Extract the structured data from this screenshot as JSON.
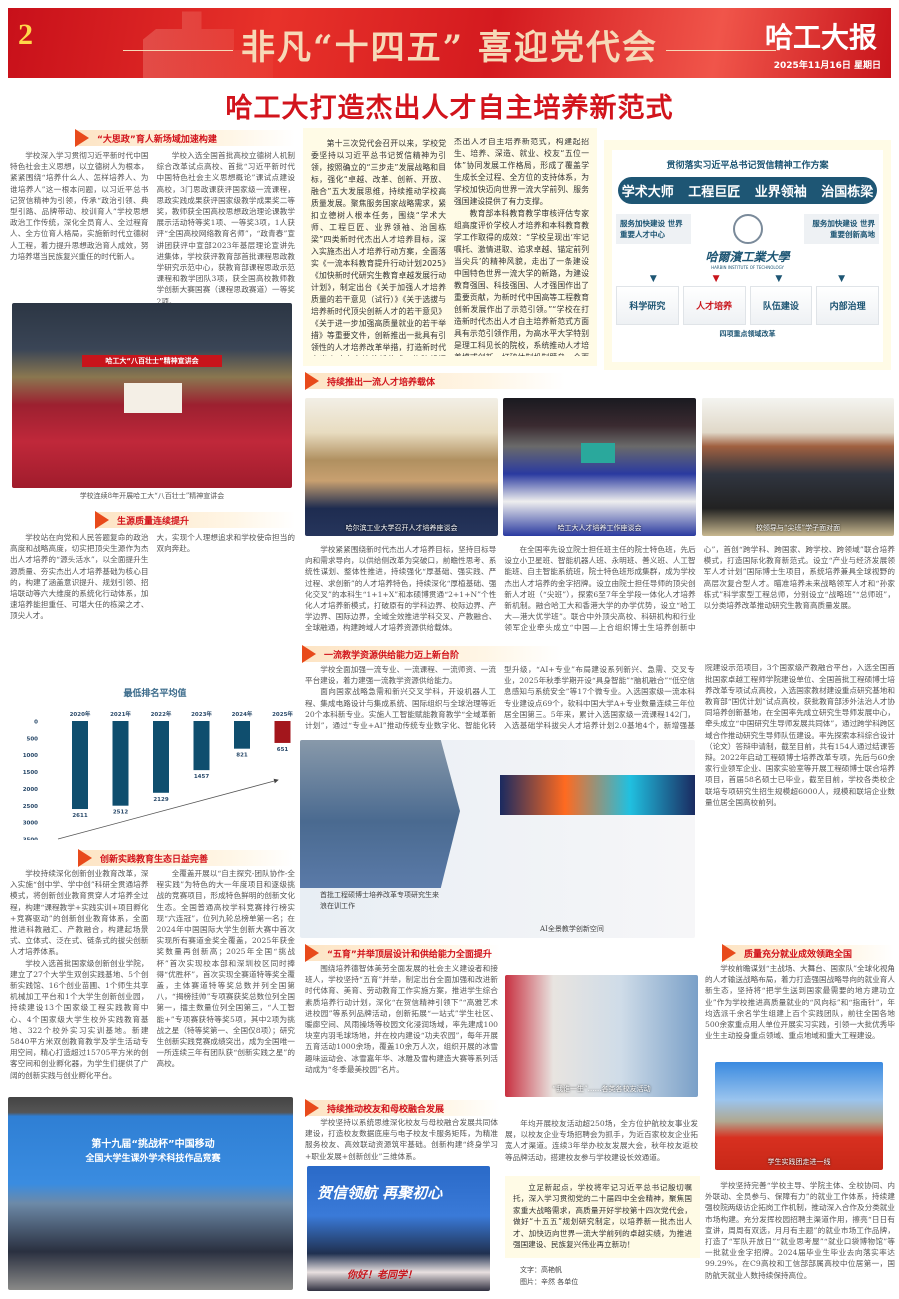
{
  "header": {
    "page_number": "2",
    "slogan": "非凡“十四五” 喜迎党代会",
    "paper_name": "哈工大报",
    "date": "2025年11月16日 星期日"
  },
  "headline": "哈工大打造杰出人才自主培养新范式",
  "colors": {
    "brand_red": "#d2141c",
    "accent_orange": "#e84a1b",
    "chart_bar": "#0f4e6e",
    "chart_highlight": "#a3161c",
    "infographic_blue": "#1e5674",
    "box_yellow": "#fffbe6"
  },
  "sections": {
    "s1": {
      "title": "“大思政”育人新场域加速构建",
      "p1": "学校深入学习贯彻习近平新时代中国特色社会主义思想，以立德树人为根本，紧紧围绕“培养什么人、怎样培养人、为谁培养人”这一根本问题，以习近平总书记贺信精神为引领，传承“政治引领、典型引路、品牌带动、校训育人”学校思想政治工作传统，深化全员育人、全过程育人、全方位育人格局，实施新时代立德树人工程，着力提升思想政治育人成效，努力培养堪当民族复兴重任的时代新人。",
      "p2": "学校入选全国首批高校立德树人机制综合改革试点高校、首批“习近平新时代中国特色社会主义思想概论”课试点建设高校，3门思政课获评国家级一流课程，思政实践成果获评国家级教学成果奖二等奖，教师获全国高校思想政治理论课教学展示活动特等奖1项、一等奖3项，1人获评“全国高校网络教育名师”，“政青春”宣讲团获评中宣部2023年基层理论宣讲先进集体，学校获评教育部首批课程思政教学研究示范中心，获教育部课程思政示范课程和教学团队3项，获全国高校教师教学创新大赛国赛（课程思政赛道）一等奖2项。",
      "photo_banner": "哈工大“八百壮士”精神宣讲会",
      "photo_caption": "学校连续8年开展哈工大“八百壮士”精神宣讲会"
    },
    "s2": {
      "title": "生源质量连续提升",
      "p1": "学校站在向党和人民答题复命的政治高度和战略高度，切实把顶尖生源作为杰出人才培养的“源头活水”，以全面提升生源质量、夯实杰出人才培养基础为核心目的，构建了涵盖意识提升、规划引领、招培联动等六大维度的系统化行动体系，加速培养能担重任、可堪大任的栋梁之才、顶尖人才。",
      "p2": "校领导带队深入走访重点中学，招生部门强化与各部门协同联动，各地招生组扩大名额、校友等力量，本科生生源质量连续五年提升，录取最低排名平均值由2020年的2611名跃升至2025年的651名，达到改革开放以来最好成绩。创新实施“博士研究生招生优秀生源快响行动”，实现从“被动选才”向“主动聚才”转变，硕士研究生推免生、博士研究生优秀生源率均提高，研究生生源质量较“十四五”初翻一番。一大批优秀学子主动选择报考哈工大，实现个人理想追求和学校使命担当的双向奔赴。"
    },
    "s3": {
      "title": "创新实践教育生态日益完善",
      "p1": "学校持续深化创新创业教育改革，深入实施“创中学、学中创”科研全贯通培养模式，将创新创业教育贯穿人才培养全过程，构建“课程教学+实践实训+项目孵化+竞赛驱动”的创新创业教育体系，全面推进科教融汇、产教融合，构建起场景式、立体式、泛在式、链条式的拔尖创新人才培养体系。",
      "p2": "学校入选首批国家级创新创业学院，建立了27个大学生双创实践基地、5个创新实践馆、16个创业苗圃、1个师生共享机械加工平台和1个大学生创新创业园，持续建设13个国家级工程实践教育中心、4个国家级大学生校外实践教育基地、322个校外实习实训基地。新建5840平方米双创教育教学及学生活动专用空间，精心打造超过15705平方米的创客空间和创业孵化器，为学生们提供了广阔的创新实践与创业孵化平台。",
      "p3": "全覆盖开展以“自主探究-团队协作-全程实践”为特色的大一年度项目和逐级挑战的竞赛项目，形成特色鲜明的创新文化生态。全国普通高校学科竞赛排行榜实现“六连冠”，位列九轮总榜单第一名；在2024年中国国际大学生创新大赛中首次实现所有赛道金奖全覆盖，2025年获金奖数量再创新高；2025年全国“挑战杯”首次实现校本部和深圳校区同时捧得“优胜杯”，首次实现全赛道特等奖全覆盖，主体赛道特等奖总数并列全国第八，“揭榜挂帅”专项赛获奖总数位列全国第一，擂主数量位列全国第三，“人工智能+”专项赛获特等奖5项，其中2项为挑战之星（特等奖第一、全国仅8项）；研究生创新实践竞赛成绩突出，成为全国唯一一所连续三年有团队获“创新实践之星”的高校。",
      "photo_banner_1": "第十九届“挑战杯”中国移动",
      "photo_banner_2": "全国大学生课外学术科技作品竞赛"
    },
    "intro": {
      "p1": "第十三次党代会召开以来，学校党委坚持以习近平总书记贺信精神为引领，按照确立的“三步走”发展战略和目标，强化“卓越、改革、创新、开放、融合”五大发展思维，持续推动学校高质量发展。聚焦服务国家战略需求，紧扣立德树人根本任务，围绕“学术大师、工程巨匠、业界领袖、治国栋梁”四类新时代杰出人才培养目标，深入实施杰出人才培养行动方案，全面落实《一流本科教育提升行动计划2025》《加快新时代研究生教育卓越发展行动计划》，制定出台《关于加强人才培养质量的若干意见（试行）》《关于选拔与培养新时代顶尖创新人才的若干意见》《关于进一步加强高质量就业的若干举措》等重要文件，创新推出一批具有引领性的人才培养改革举措，打造新时代杰出人才自主培养新范式，构建起招生、培养、深造、就业、校友“五位一体”协同发展工作格局，形成了覆盖学生成长全过程、全方位的支持体系，为学校加快迈向世界一流大学前列、服务强国建设提供了有力支撑。",
      "p2": "教育部本科教育教学审核评估专家组高度评价学校人才培养和本科教育教学工作取得的成效：“学校呈现出‘牢记嘱托、激情进取、追求卓越、锚定前列当尖兵’的精神风貌，走出了一条建设中国特色世界一流大学的新路，为建设教育强国、科技强国、人才强国作出了重要贡献，为新时代中国高等工程教育创新发展作出了示范引领。”“学校在打造新时代杰出人才自主培养新范式方面具有示范引领作用，为高水平大学特别是理工科见长的院校，系统推动人才培养模式创新、打破体制机制壁垒、全面提升育人质量，提供了极具借鉴意义的完整方案与实施路径。”"
    },
    "infographic": {
      "title": "贯彻落实习近平总书记贺信精神工作方案",
      "goals": "学术大师 工程巨匠 业界领袖 治国栋梁",
      "left": "服务加快建设 世界重要人才中心",
      "right": "服务加快建设 世界重要创新高地",
      "university": "哈爾濱工業大學",
      "university_en": "HARBIN INSTITUTE OF TECHNOLOGY",
      "areas": [
        "科学研究",
        "人才培养",
        "队伍建设",
        "内部治理"
      ],
      "highlight_area": "人才培养",
      "footer": "四项重点领域改革"
    },
    "s4": {
      "title": "持续推出一流人才培养载体",
      "photo_captions": [
        "哈尔滨工业大学召开人才培养座谈会",
        "哈工大人才培养工作座谈会",
        "校领导与“尖班”学子面对面"
      ],
      "p1": "学校紧紧围绕新时代杰出人才培养目标，坚持目标导向和需求导向，以供给侧改革为突破口，前瞻性思考、系统性谋划、整体性推进，持续强化“厚基础、强实践、严过程、求创新”的人才培养特色，持续深化“厚植基础、强化交叉”的本科生“1+1+X”和本硕博贯通“2+1+N”个性化人才培养新模式，打破原有的学科边界、校际边界、产学边界、国际边界，全域全效推进学科交叉、产教融合、全球融通，构建跨域人才培养资源供给载体。",
      "p2": "在全国率先设立院士担任班主任的院士特色班，先后设立小卫星班、智能机器人班、永明班、善义班、人工智能班、自主智能系统班，院士特色班形成集群，成为学校杰出人才培养的金字招牌。设立由院士担任导师的顶尖创新人才班（“尖班”），探索6至7年全学段一体化人才培养新机制。融合哈工大和香港大学的办学优势，设立“哈工大—港大优学班”。联合中外顶尖高校、科研机构和行业领军企业牵头成立“中国—上合组织博士生培养创新中心”，首创“跨学科、跨国家、跨学校、跨领域”联合培养模式，打造国际化教育新范式。设立“产业与经济发展领军人才计划”国际博士生项目，系统培养兼具全球视野的高层次复合型人才。瞄准培养未来战略领军人才和“孙家栋式”科学家型工程总师，分别设立“战略班”“总师班”，以分类培养改革推动研究生教育高质量发展。"
    },
    "s5": {
      "title": "一流教学资源供给能力迈上新台阶",
      "p1": "学校全面加强一流专业、一流课程、一流师资、一流平台建设，着力建强一流教学资源供给能力。",
      "p2": "面向国家战略急需和新兴交叉学科，开设机器人工程、集成电路设计与集成系统、国际组织与全球治理等近20个本科新专业。实施人工智能赋能教育教学“全域革新计划”，通过“专业+AI”推动传统专业数字化、智能化转型升级，“AI+专业”布局建设系列新兴、急需、交叉专业，2025年秋季学期开设“具身智能”“脑机融合”“低空信息感知与系统安全”等17个微专业。入选国家级一流本科专业建设点69个，软科中国大学A+专业数量连续三年位居全国第三。5年来，累计入选国家级一流课程142门，入选基础学科拔尖人才培养计划2.0基地4个，新增强基计划专业9个，累计达13个，新增国家级教学名师4人，获国家级教学成果奖12项、首届全国优秀教材奖9种。着力建设智慧教室、智慧图书馆等基础设施，入选教育部人工智能赋能人才培养创新试点建设高校，连续三次入选教育部“人工智能+高等教育”应用场景典型案例，获评工业和信息化部“5G+智慧教育”应用试点全国典型项目。通过“引进来”“走出去”拓宽学生国际视野，提升全球胜任力。",
      "p3": "学校获批全国首批未来技术学院、国家级创新创业学院、国家级特色化示范性软件学院，获批国家一流网络安全学院建设示范项目，3个国家级产教融合平台，入选全国首批国家卓越工程师学院建设单位、全国首批工程硕博士培养改革专项试点高校，入选国家教材建设重点研究基地和教育部“国优计划”试点高校，获批教育部涉外法治人才协同培养创新基地，在全国率先成立研究生导师发展中心，牵头成立“中国研究生导师发展共同体”，通过跨学科跨区域合作推动研究生导师队伍建设。率先探索本科综合设计（论文）答辩申请制，截至目前，共有154人通过结课答辩。2022年启动工程硕博士培养改革专项，先后与60余家行业领军企业、国家实验室等开展工程硕博士联合培养项目，首届58名硕士已毕业，截至目前，学校各类校企联培专项研究生招生规模超6000人，规模和联培企业数量位居全国高校前列。",
      "photo_caption_1": "首批工程硕博士培养改革专项研究生来浪在训工作",
      "photo_caption_2": "AI全景教学创新空间"
    },
    "s6": {
      "title": "“五育”并举顶层设计和供给能力全面提升",
      "p1": "围绕培养德智体美劳全面发展的社会主义建设者和接班人，学校坚持“五育”并举，制定出台全面加强和改进新时代体育、美育、劳动教育工作实施方案，推进学生综合素质培养行动计划，深化“在贺信精神引领下”“高雅艺术进校园”等系列品牌活动，创新拓展“一站式”学生社区、暖廊空间、风雨操场等校园文化浸润场域，率先建成100块室内羽毛球场地，并在校内建设“功夫农园”，每年开展五育活动1000余场，覆盖10余万人次，组织开展的冰雪趣味运动会、冰雪嘉年华、冰雕及雪构建造大赛等系列活动成为“冬季最美校园”名片。",
      "photo_caption": "“我谁一生”……各类各校友活动"
    },
    "s7": {
      "title": "持续推动校友和母校融合发展",
      "p1": "学校坚持以系统思维深化校友与母校融合发展共同体建设，打造校友数据底座与电子校友卡服务矩阵，为精准服务校友、高效联动资源筑牢基础。创新构建“终身学习+职业发展+创新创业”三维体系。",
      "p2": "年均开展校友活动超250场，全方位护航校友事业发展，以校友企业专场招聘会为抓手，为近百家校友企业拓宽人才渠道。连续3年举办校友发展大会，秋年校友返校等品牌活动，搭建校友参与学校建设长效通道。",
      "photo_banner_1": "贺信领航 再聚初心",
      "photo_banner_2": "你好！老同学！"
    },
    "s8": {
      "title": "质量充分就业成效领跑全国",
      "p1": "学校前瞻谋划“主战场、大舞台、国家队”全球化视角的人才输送战略布局，着力打造强国战略导向的就业育人新生态，坚持将“把学生送到国家最需要的地方建功立业”作为学校推进高质量就业的“风向标”和“指南针”，年均选派千余名学生组建上百个实践团队，前往全国各地500余家重点用人单位开展实习实践，引领一大批优秀毕业生主动投身重点领域、重点地域和重大工程建设。",
      "photo_caption": "学生实践团走进一线",
      "p2": "学校坚持完善“学校主导、学院主体、全校协同、内外联动、全员参与、保障有力”的就业工作体系，持续建强校院两级访企拓岗工作机制，推动深入合作及分类就业市场构建。充分发挥校园招聘主渠道作用，擦亮“日日有宣讲，周周有双选，月月有主题”的就业市场工作品牌，打造了“军队开放日”“就业思考屋”“就业口袋博物馆”等一批就业金字招牌。2024届毕业生毕业去向落实率达99.29%，在C9高校和工信部部属高校中位居第一，国防航天就业人数持续保持高位。"
    },
    "closing": {
      "text": "立足新起点，学校将牢记习近平总书记殷切嘱托，深入学习贯彻党的二十届四中全会精神，聚焦国家重大战略需求，高质量开好学校第十四次党代会，做好“十五五”规划研究制定，以培养新一批杰出人才、加快迈向世界一流大学前列的卓越实绩，为推进强国建设、民族复兴伟业再立新功！",
      "byline_text": "文字：高艳帆",
      "byline_photo": "图片：辛然 各单位"
    }
  },
  "chart_data": {
    "type": "bar",
    "title": "最低排名平均值",
    "categories": [
      "2020年",
      "2021年",
      "2022年",
      "2023年",
      "2024年",
      "2025年"
    ],
    "values": [
      2611,
      2512,
      2129,
      1457,
      821,
      651
    ],
    "ylim": [
      0,
      3500
    ],
    "yticks": [
      0,
      500,
      1000,
      1500,
      2000,
      2500,
      3000,
      3500
    ],
    "y_inverted": true,
    "highlight_category": "2025年",
    "trend_arrow": "up-right"
  }
}
